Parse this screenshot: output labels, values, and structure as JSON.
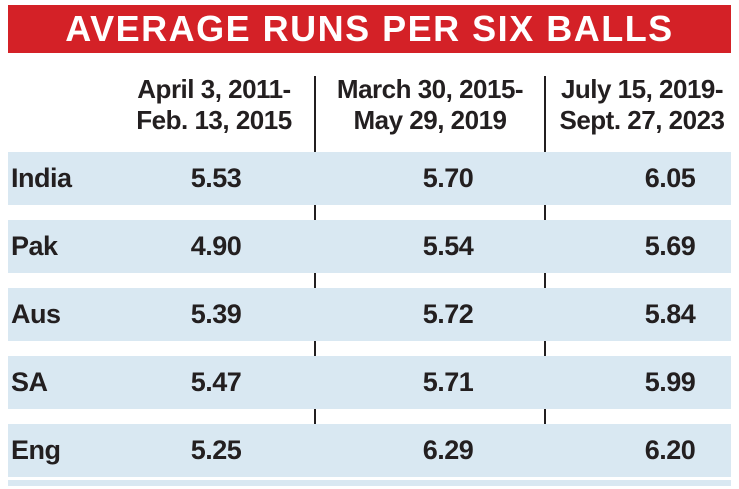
{
  "title": "AVERAGE RUNS PER SIX BALLS",
  "colors": {
    "banner_bg": "#d42127",
    "banner_text": "#ffffff",
    "row_bg": "#d9e8f2",
    "text": "#231f20",
    "divider": "#231f20"
  },
  "table": {
    "columns": [
      {
        "line1": "April 3, 2011-",
        "line2": "Feb. 13, 2015"
      },
      {
        "line1": "March 30, 2015-",
        "line2": "May 29, 2019"
      },
      {
        "line1": "July 15, 2019-",
        "line2": "Sept. 27, 2023"
      }
    ],
    "rows": [
      {
        "team": "India",
        "v1": "5.53",
        "v2": "5.70",
        "v3": "6.05"
      },
      {
        "team": "Pak",
        "v1": "4.90",
        "v2": "5.54",
        "v3": "5.69"
      },
      {
        "team": "Aus",
        "v1": "5.39",
        "v2": "5.72",
        "v3": "5.84"
      },
      {
        "team": "SA",
        "v1": "5.47",
        "v2": "5.71",
        "v3": "5.99"
      },
      {
        "team": "Eng",
        "v1": "5.25",
        "v2": "6.29",
        "v3": "6.20"
      }
    ]
  },
  "chart_data": {
    "type": "table",
    "title": "AVERAGE RUNS PER SIX BALLS",
    "categories": [
      "April 3, 2011 - Feb. 13, 2015",
      "March 30, 2015 - May 29, 2019",
      "July 15, 2019 - Sept. 27, 2023"
    ],
    "series": [
      {
        "name": "India",
        "values": [
          5.53,
          5.7,
          6.05
        ]
      },
      {
        "name": "Pak",
        "values": [
          4.9,
          5.54,
          5.69
        ]
      },
      {
        "name": "Aus",
        "values": [
          5.39,
          5.72,
          5.84
        ]
      },
      {
        "name": "SA",
        "values": [
          5.47,
          5.71,
          5.99
        ]
      },
      {
        "name": "Eng",
        "values": [
          5.25,
          6.29,
          6.2
        ]
      }
    ],
    "layout": {
      "grid": "off",
      "row_striping": true,
      "header_rule": "vertical-black-lines"
    }
  }
}
